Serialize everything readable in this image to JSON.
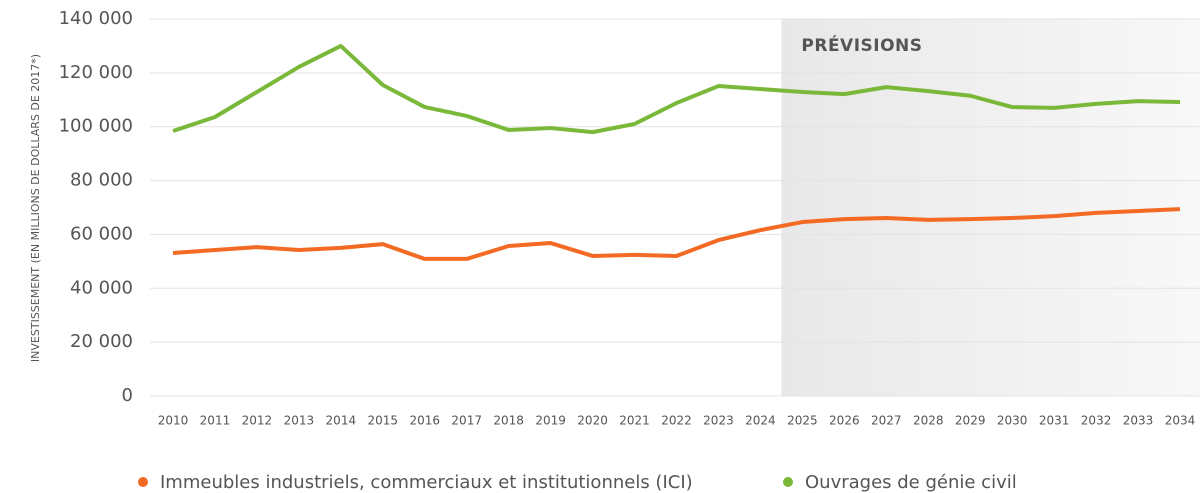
{
  "chart_data": {
    "type": "line",
    "y_label": "INVESTISSEMENT (EN MILLIONS DE DOLLARS DE 2017*)",
    "annotation": "PRÉVISIONS",
    "forecast_from": 2024.5,
    "x": [
      2010,
      2011,
      2012,
      2013,
      2014,
      2015,
      2016,
      2017,
      2018,
      2019,
      2020,
      2021,
      2022,
      2023,
      2024,
      2025,
      2026,
      2027,
      2028,
      2029,
      2030,
      2031,
      2032,
      2033,
      2034
    ],
    "xlim": [
      2010,
      2034
    ],
    "ylim": [
      0,
      140000
    ],
    "yticks": [
      0,
      {
        "value": 20000,
        "label": "20 000"
      },
      {
        "value": 40000,
        "label": "40 000"
      },
      {
        "value": 60000,
        "label": "60 000"
      },
      {
        "value": 80000,
        "label": "80 000"
      },
      {
        "value": 100000,
        "label": "100 000"
      },
      {
        "value": 120000,
        "label": "120 000"
      },
      {
        "value": 140000,
        "label": "140 000"
      }
    ],
    "grid": true,
    "legend": "bottom",
    "series": [
      {
        "name": "Immeubles industriels, commerciaux et institutionnels (ICI)",
        "color": "#f26a24",
        "values": [
          53100,
          54200,
          55300,
          54200,
          55000,
          56400,
          50900,
          50900,
          55700,
          56800,
          52000,
          52400,
          52000,
          57900,
          61600,
          64600,
          65700,
          66100,
          65400,
          65700,
          66100,
          66800,
          68000,
          68700,
          69400
        ]
      },
      {
        "name": "Ouvrages de génie civil",
        "color": "#7ab83a",
        "values": [
          98400,
          103600,
          112900,
          122200,
          130000,
          115500,
          107300,
          104000,
          98800,
          99500,
          98000,
          101000,
          108800,
          115100,
          114000,
          112900,
          112100,
          114700,
          113200,
          111500,
          107300,
          107000,
          108500,
          109500,
          109200
        ]
      }
    ]
  }
}
